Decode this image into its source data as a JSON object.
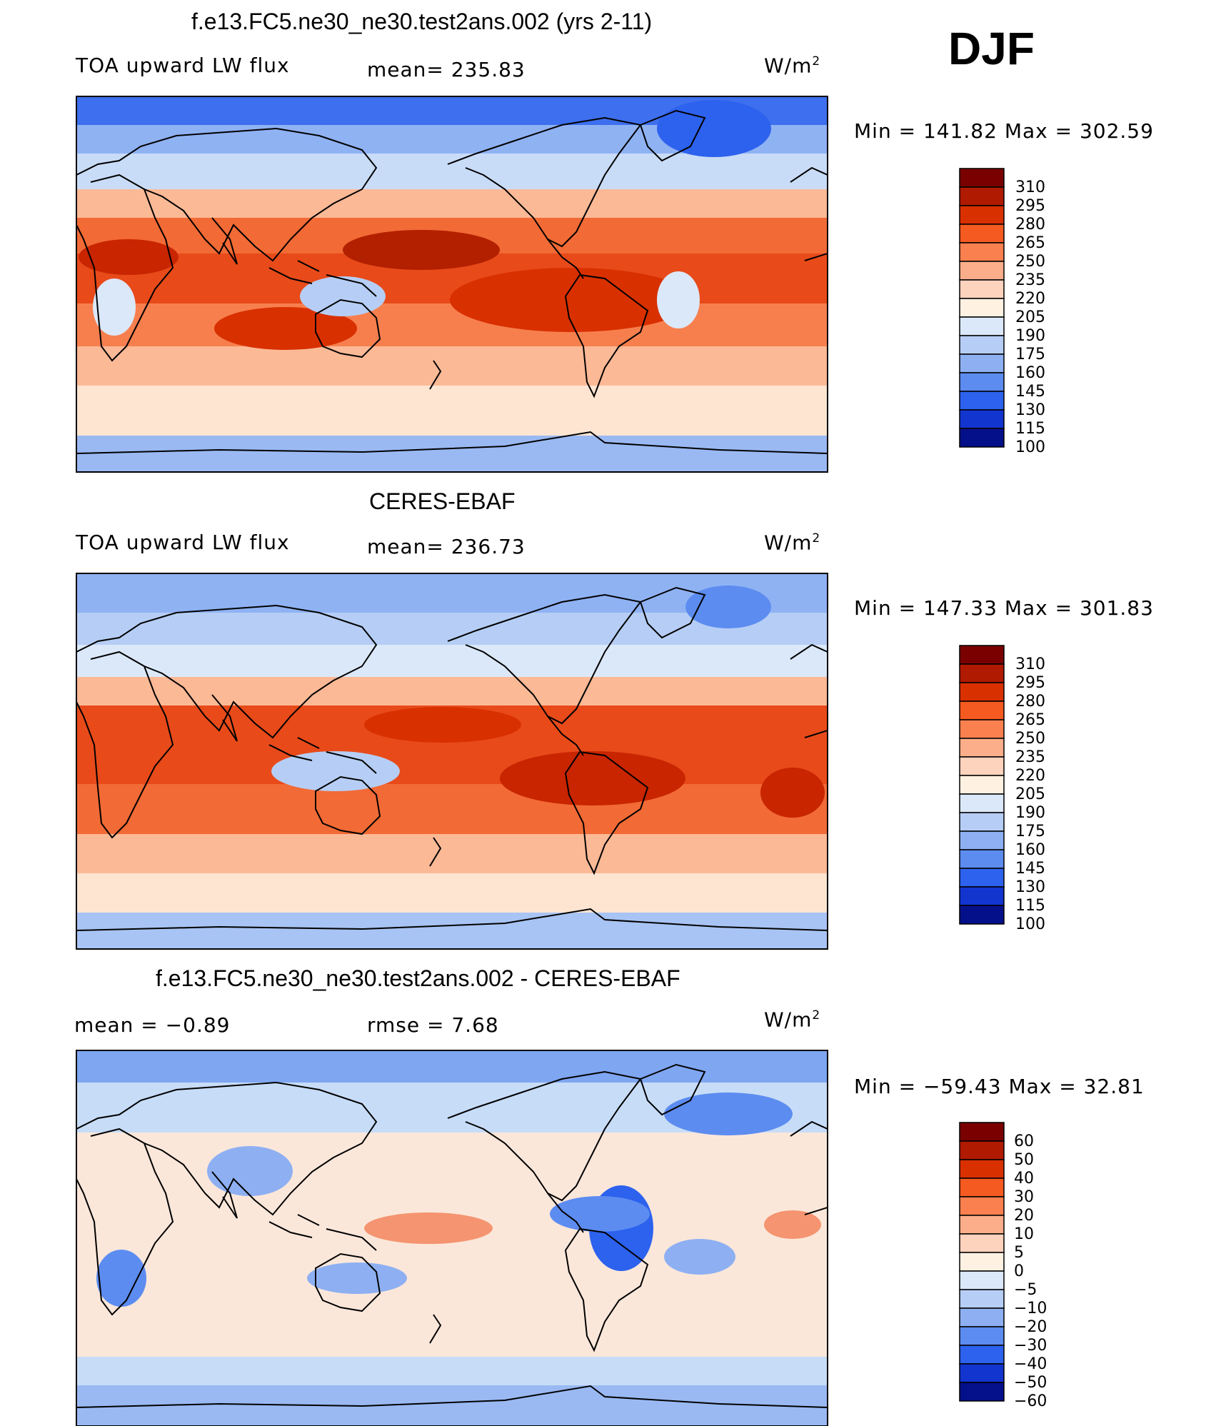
{
  "season": "DJF",
  "panels": [
    {
      "title": "f.e13.FC5.ne30_ne30.test2ans.002 (yrs 2-11)",
      "left_label": "TOA upward LW flux",
      "center_label": "mean= 235.83",
      "units_base": "W/m",
      "units_sup": "2",
      "minmax": "Min = 141.82 Max = 302.59",
      "colorbar_labels": [
        "310",
        "295",
        "280",
        "265",
        "250",
        "235",
        "220",
        "205",
        "190",
        "175",
        "160",
        "145",
        "130",
        "115",
        "100"
      ]
    },
    {
      "title": "CERES-EBAF",
      "left_label": "TOA upward LW flux",
      "center_label": "mean= 236.73",
      "units_base": "W/m",
      "units_sup": "2",
      "minmax": "Min = 147.33 Max = 301.83",
      "colorbar_labels": [
        "310",
        "295",
        "280",
        "265",
        "250",
        "235",
        "220",
        "205",
        "190",
        "175",
        "160",
        "145",
        "130",
        "115",
        "100"
      ]
    },
    {
      "title": "f.e13.FC5.ne30_ne30.test2ans.002 - CERES-EBAF",
      "left_label": "mean =   −0.89",
      "center_label": "rmse =    7.68",
      "units_base": "W/m",
      "units_sup": "2",
      "minmax": "Min = −59.43 Max =   32.81",
      "colorbar_labels": [
        "60",
        "50",
        "40",
        "30",
        "20",
        "10",
        "5",
        "0",
        "−5",
        "−10",
        "−20",
        "−30",
        "−40",
        "−50",
        "−60"
      ]
    }
  ],
  "colors": {
    "bar_fills": [
      "#7a0000",
      "#b01a00",
      "#d93000",
      "#f55a20",
      "#fa8050",
      "#fcae8a",
      "#fed3bd",
      "#fff1e2",
      "#dbe8fa",
      "#b6cef5",
      "#8eb0f2",
      "#5c8cf0",
      "#2d62ee",
      "#1235d0",
      "#04108a"
    ],
    "ocean_warm": "#fde6d3",
    "ocean_cool": "#c7dcf7",
    "polar": "#6f9cf0",
    "itcz": "#f06030",
    "hot": "#d83a08",
    "diff_bg": "#fbe7da",
    "diff_neg": "#6b98ef",
    "diff_pos": "#f59470"
  }
}
